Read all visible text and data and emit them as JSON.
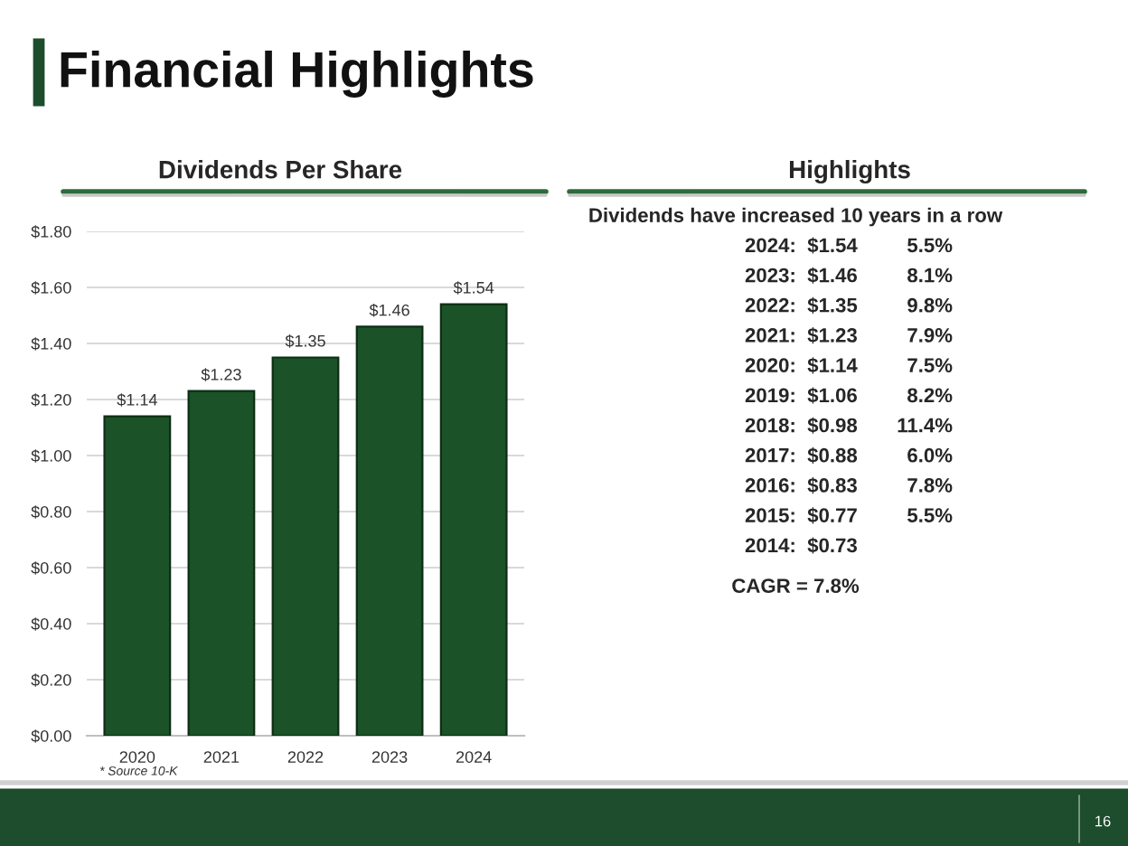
{
  "chart_data": [
    {
      "type": "other",
      "title": "Financial Highlights",
      "annotations": [
        "16"
      ]
    },
    {
      "type": "bar",
      "title": "Dividends Per Share",
      "categories": [
        "2020",
        "2021",
        "2022",
        "2023",
        "2024"
      ],
      "values": [
        1.14,
        1.23,
        1.35,
        1.46,
        1.54
      ],
      "color": "#1b5227",
      "value_labels": [
        "$1.14",
        "$1.23",
        "$1.35",
        "$1.46",
        "$1.54"
      ],
      "ylim": [
        0,
        1.8
      ],
      "yticks": [
        {
          "value": 0,
          "label": "$0.00"
        },
        {
          "value": 0.2,
          "label": "$0.20"
        },
        {
          "value": 0.4,
          "label": "$0.40"
        },
        {
          "value": 0.6,
          "label": "$0.60"
        },
        {
          "value": 0.8,
          "label": "$0.80"
        },
        {
          "value": 1.0,
          "label": "$1.00"
        },
        {
          "value": 1.2,
          "label": "$1.20"
        },
        {
          "value": 1.4,
          "label": "$1.40"
        },
        {
          "value": 1.6,
          "label": "$1.60"
        },
        {
          "value": 1.8,
          "label": "$1.80"
        }
      ],
      "grid": "y",
      "annotations": [
        "* Source 10-K"
      ]
    },
    {
      "type": "other",
      "title": "Highlights",
      "annotations": [
        "Dividends have increased 10 years in a row",
        "2024: $1.54 5.5%",
        "2023: $1.46 8.1%",
        "2022: $1.35 9.8%",
        "2021: $1.23 7.9%",
        "2020: $1.14 7.5%",
        "2019: $1.06 8.2%",
        "2018: $0.98 11.4%",
        "2017: $0.88 6.0%",
        "2016: $0.83 7.8%",
        "2015: $0.77 5.5%",
        "2014: $0.73",
        "CAGR = 7.8%"
      ]
    }
  ]
}
